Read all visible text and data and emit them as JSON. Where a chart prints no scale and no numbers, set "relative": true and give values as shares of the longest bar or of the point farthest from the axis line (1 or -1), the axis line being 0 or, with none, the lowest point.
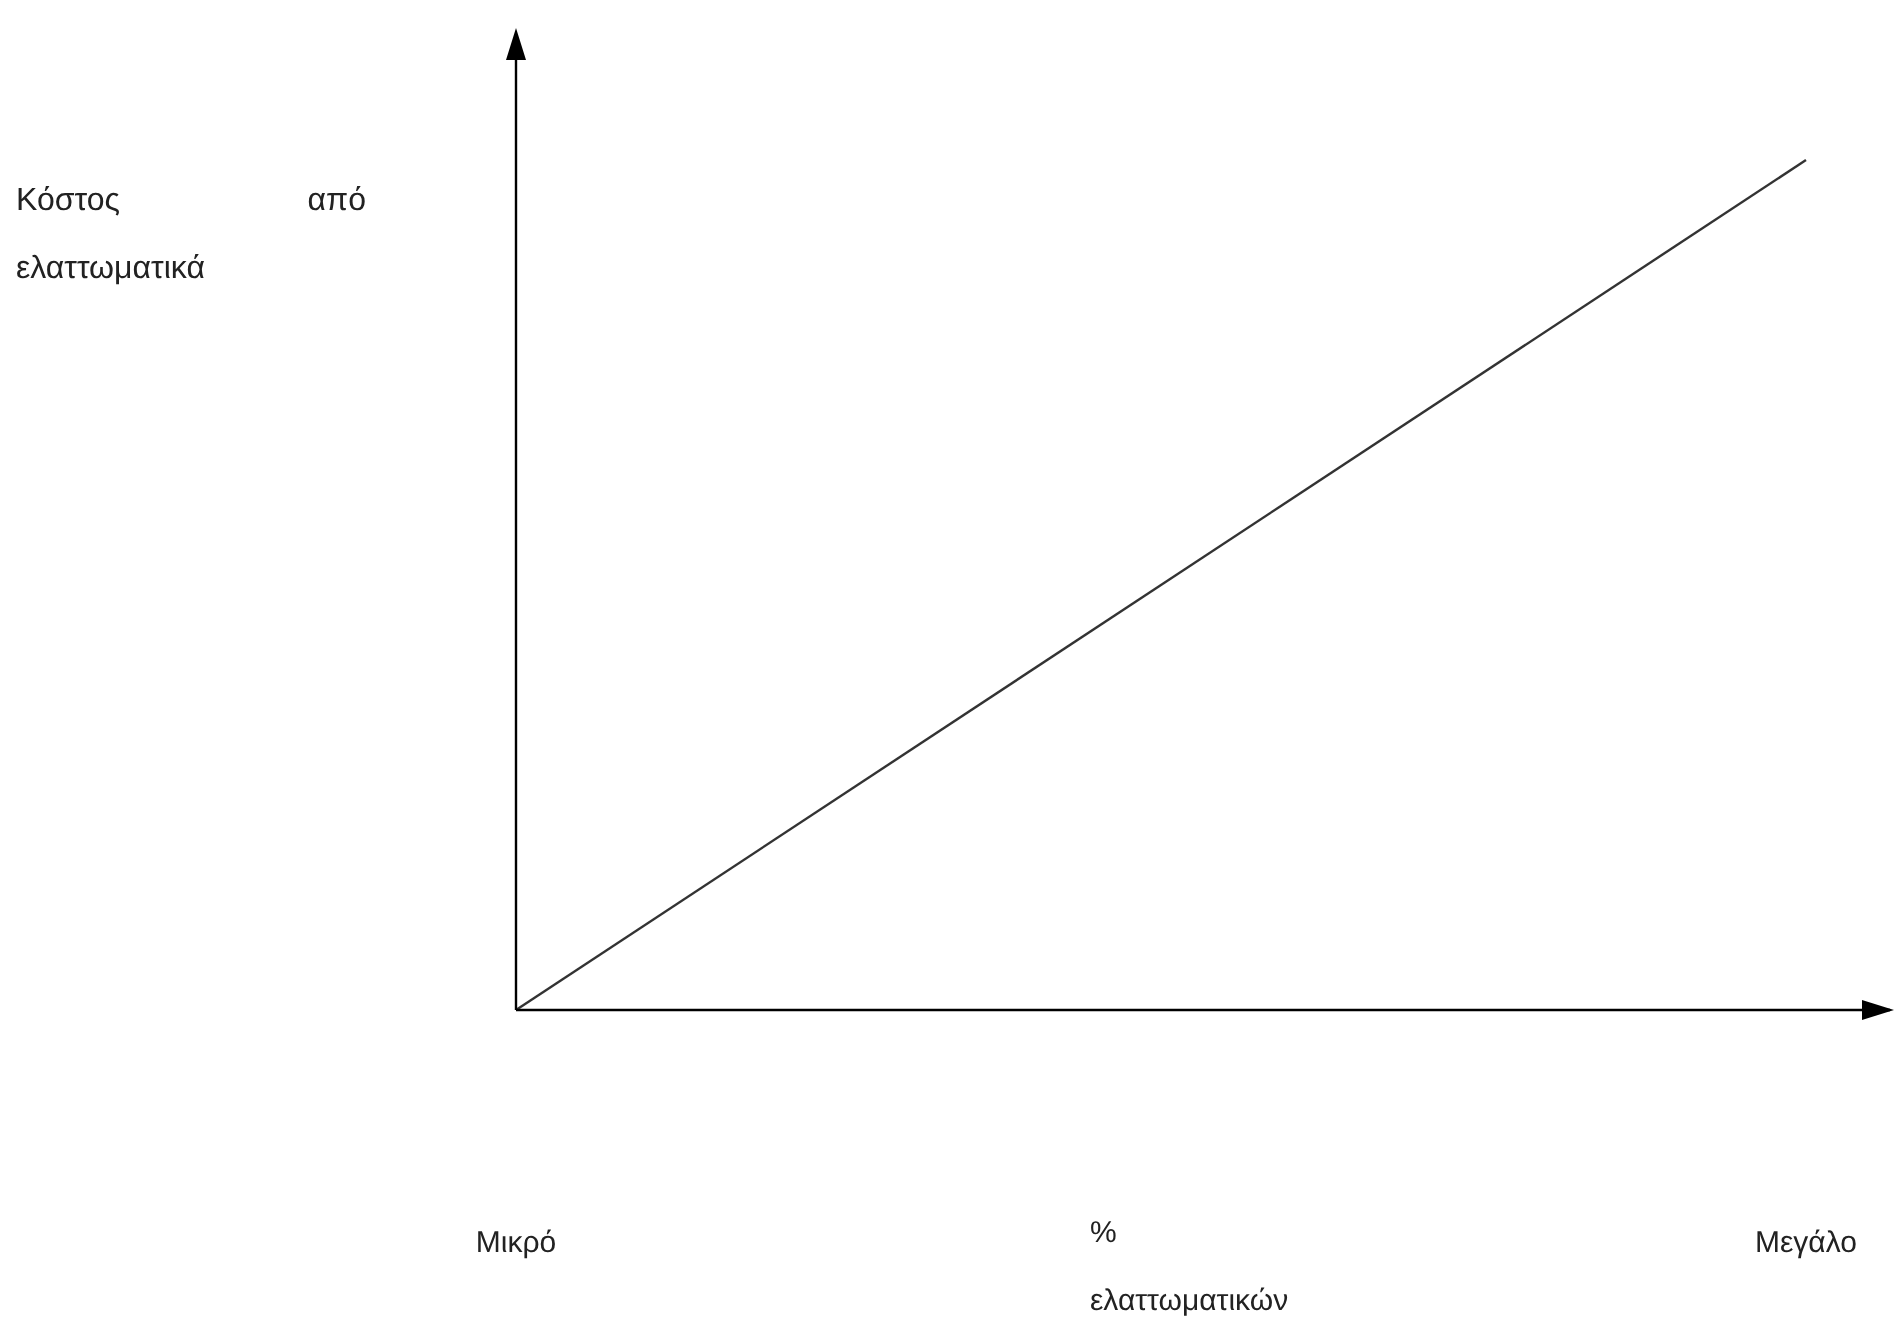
{
  "chart_data": {
    "type": "line",
    "relative": true,
    "categories": [
      "Μικρό",
      "Μεγάλο"
    ],
    "series": [
      {
        "color": "#333333",
        "values": [
          0,
          1
        ]
      }
    ],
    "xlabel": "% ελαττωματικών",
    "ylabel": "Κόστος από ελαττωματικά",
    "marker": "none"
  }
}
